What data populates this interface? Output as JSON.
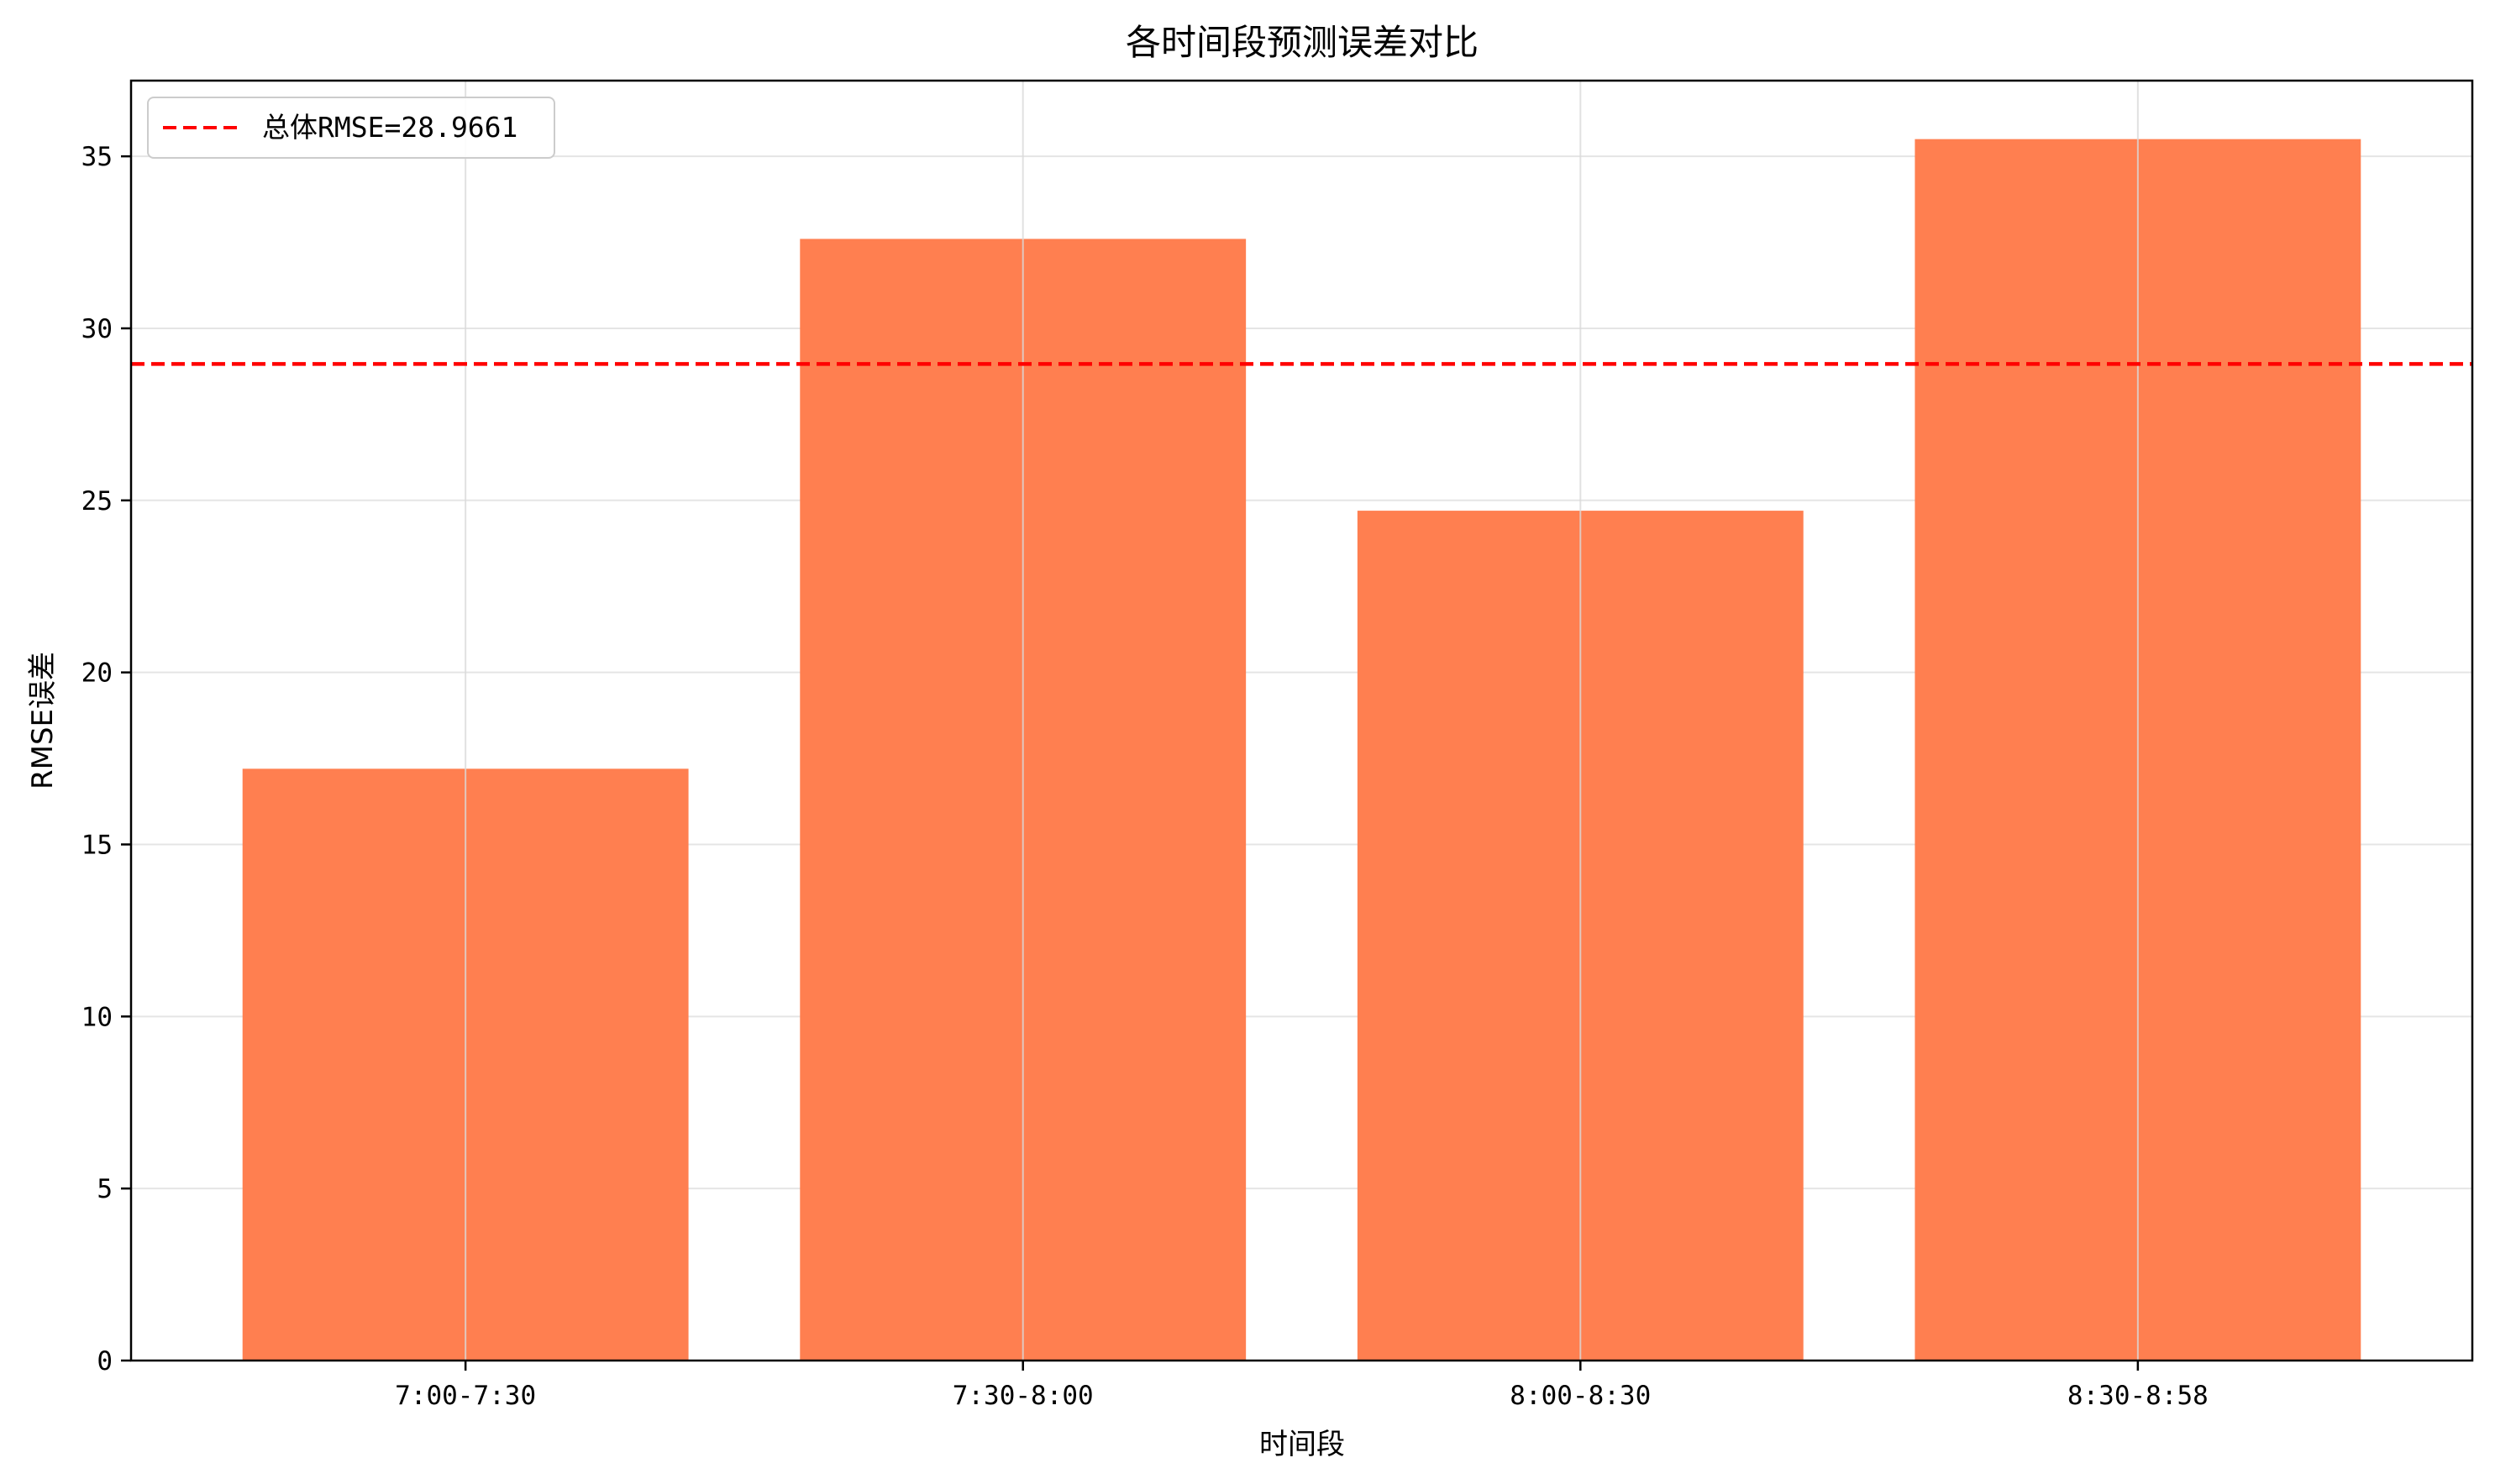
{
  "chart_data": {
    "type": "bar",
    "title": "各时间段预测误差对比",
    "xlabel": "时间段",
    "ylabel": "RMSE误差",
    "categories": [
      "7:00-7:30",
      "7:30-8:00",
      "8:00-8:30",
      "8:30-8:58"
    ],
    "values": [
      17.2,
      32.6,
      24.7,
      35.5
    ],
    "ylim": [
      0,
      37.2
    ],
    "yticks": [
      "0",
      "5",
      "10",
      "15",
      "20",
      "25",
      "30",
      "35"
    ],
    "bar_color": "#ff7f50",
    "reference_line": {
      "value": 28.9661,
      "color": "#ff0000",
      "style": "dashed",
      "label": "总体RMSE=28.9661"
    },
    "grid": true,
    "legend_position": "upper-left"
  }
}
